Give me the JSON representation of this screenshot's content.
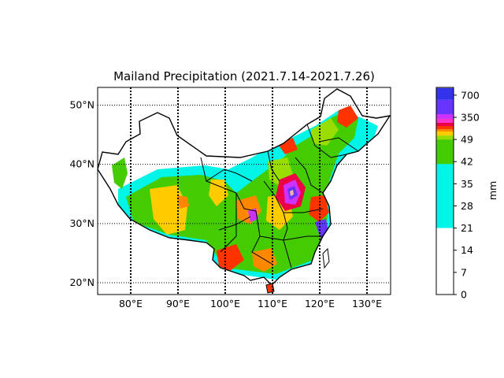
{
  "title": "Mailand Precipitation (2021.7.14-2021.7.26)",
  "map": {
    "lat_ticks": [
      "50°N",
      "40°N",
      "30°N",
      "20°N"
    ],
    "lon_ticks": [
      "80°E",
      "90°E",
      "100°E",
      "110°E",
      "120°E",
      "130°E"
    ],
    "lon_range": [
      73,
      135
    ],
    "lat_range": [
      18,
      53
    ]
  },
  "colorbar": {
    "unit": "mm",
    "tick_labels": [
      "700",
      "350",
      "49",
      "42",
      "35",
      "28",
      "21",
      "14",
      "7",
      "0"
    ],
    "colors": {
      "0-21": "#ffffff",
      "21-35": "#00f5e8",
      "35-42": "#00cc55",
      "42-49": "#44cc00",
      "49-100": "#99dd00",
      "100-200": "#ffcc00",
      "200-250": "#ff8800",
      "250-300": "#ff3300",
      "300-350": "#ee0044",
      "350-400": "#ff33cc",
      "400-500": "#cc33ff",
      "500-700": "#6633ff",
      "700+": "#3333ee",
      "max": "#f0b8a0"
    }
  }
}
